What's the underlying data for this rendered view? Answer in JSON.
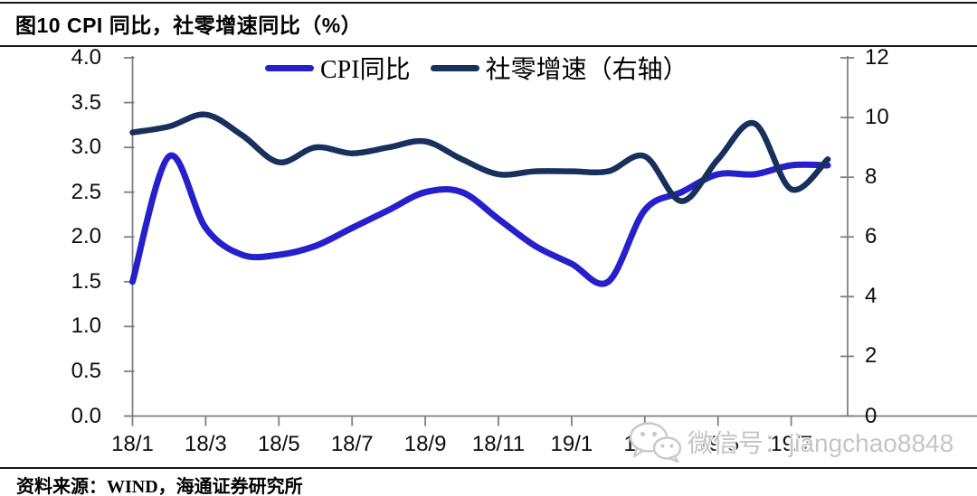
{
  "header": {
    "title": "图10 CPI 同比，社零增速同比（%）"
  },
  "footer": {
    "source": "资料来源：WIND，海通证券研究所"
  },
  "watermark": {
    "icon": "wechat-icon",
    "text": "微信号：jiangchao8848"
  },
  "chart_data": {
    "type": "line",
    "title": "图10 CPI 同比，社零增速同比（%）",
    "grid": false,
    "legend_position": "top-center",
    "x": [
      "18/1",
      "18/2",
      "18/3",
      "18/4",
      "18/5",
      "18/6",
      "18/7",
      "18/8",
      "18/9",
      "18/10",
      "18/11",
      "18/12",
      "19/1",
      "19/2",
      "19/3",
      "19/4",
      "19/5",
      "19/6",
      "19/7",
      "19/8"
    ],
    "x_tick_labels": [
      "18/1",
      "18/3",
      "18/5",
      "18/7",
      "18/9",
      "18/11",
      "19/1",
      "19/3",
      "19/5",
      "19/7"
    ],
    "series": [
      {
        "name": "CPI同比",
        "axis": "left",
        "color": "#2520CB",
        "values": [
          1.5,
          2.9,
          2.1,
          1.8,
          1.8,
          1.9,
          2.1,
          2.3,
          2.5,
          2.5,
          2.2,
          1.9,
          1.7,
          1.5,
          2.3,
          2.5,
          2.7,
          2.7,
          2.8,
          2.8
        ]
      },
      {
        "name": "社零增速（右轴）",
        "axis": "right",
        "color": "#17305C",
        "values": [
          9.5,
          9.7,
          10.1,
          9.4,
          8.5,
          9.0,
          8.8,
          9.0,
          9.2,
          8.6,
          8.1,
          8.2,
          8.2,
          8.2,
          8.7,
          7.2,
          8.6,
          9.8,
          7.6,
          8.6
        ]
      }
    ],
    "left_axis": {
      "range": [
        0.0,
        4.0
      ],
      "step": 0.5,
      "ticks": [
        "0.0",
        "0.5",
        "1.0",
        "1.5",
        "2.0",
        "2.5",
        "3.0",
        "3.5",
        "4.0"
      ]
    },
    "right_axis": {
      "range": [
        0,
        12
      ],
      "step": 2,
      "ticks": [
        "0",
        "2",
        "4",
        "6",
        "8",
        "10",
        "12"
      ]
    },
    "axis_color": "#7f7f7f"
  }
}
